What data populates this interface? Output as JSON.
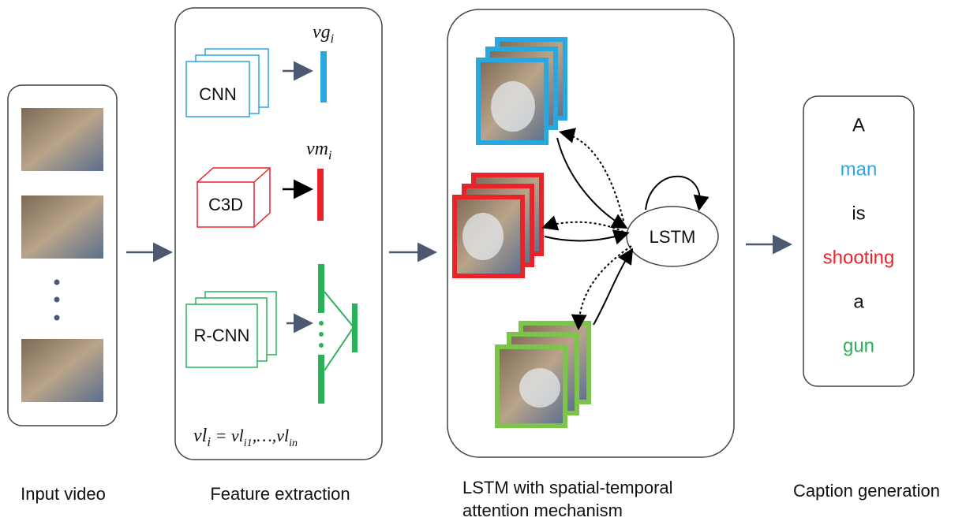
{
  "stages": [
    {
      "label": "Input video"
    },
    {
      "label": "Feature extraction",
      "extractors": [
        {
          "name": "CNN",
          "feature": {
            "base": "vg",
            "sub": "i"
          }
        },
        {
          "name": "C3D",
          "feature": {
            "base": "vm",
            "sub": "i"
          }
        },
        {
          "name": "R-CNN"
        }
      ],
      "formula": [
        {
          "text": "vl"
        },
        {
          "sub": "i"
        },
        {
          "text": " = vl"
        },
        {
          "sub": "i1"
        },
        {
          "text": ",…,vl"
        },
        {
          "sub": "in"
        }
      ]
    },
    {
      "label_lines": [
        "LSTM with spatial-temporal",
        "attention mechanism"
      ],
      "node": "LSTM"
    },
    {
      "label": "Caption generation",
      "caption": [
        {
          "word": "A",
          "color": "#111111"
        },
        {
          "word": "man",
          "color": "#29a8df"
        },
        {
          "word": "is",
          "color": "#111111"
        },
        {
          "word": "shooting",
          "color": "#e8232a"
        },
        {
          "word": "a",
          "color": "#111111"
        },
        {
          "word": "gun",
          "color": "#2bb15a"
        }
      ]
    }
  ]
}
